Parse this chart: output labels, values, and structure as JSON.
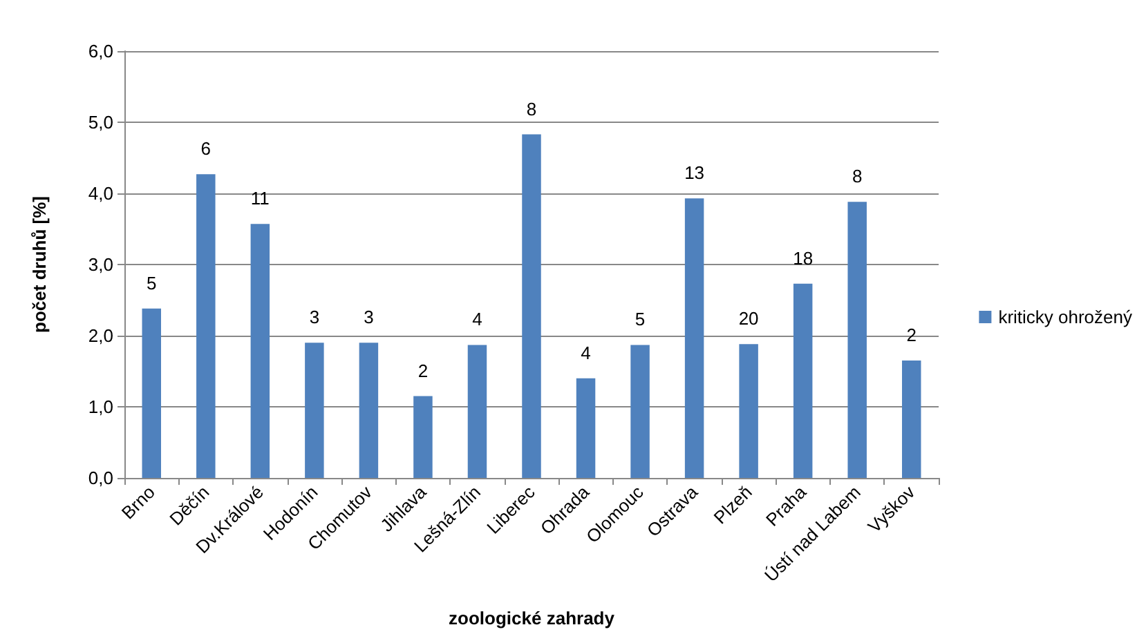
{
  "chart_data": {
    "type": "bar",
    "xlabel": "zoologické zahrady",
    "ylabel": "počet druhů [%]",
    "categories": [
      "Brno",
      "Děčín",
      "Dv.Králové",
      "Hodonín",
      "Chomutov",
      "Jihlava",
      "Lešná-Zlín",
      "Liberec",
      "Ohrada",
      "Olomouc",
      "Ostrava",
      "Plzeň",
      "Praha",
      "Ústí nad Labem",
      "Vyškov"
    ],
    "series": [
      {
        "name": "kriticky ohrožený",
        "color": "#4f81bd",
        "values": [
          2.38,
          4.27,
          3.57,
          1.9,
          1.9,
          1.15,
          1.87,
          4.83,
          1.4,
          1.87,
          3.93,
          1.88,
          2.73,
          3.88,
          1.65
        ]
      }
    ],
    "annotations": [
      {
        "text": "5",
        "x": "Brno",
        "y": 2.38
      },
      {
        "text": "6",
        "x": "Děčín",
        "y": 4.27
      },
      {
        "text": "11",
        "x": "Dv.Králové",
        "y": 3.57
      },
      {
        "text": "3",
        "x": "Hodonín",
        "y": 1.9
      },
      {
        "text": "3",
        "x": "Chomutov",
        "y": 1.9
      },
      {
        "text": "2",
        "x": "Jihlava",
        "y": 1.15
      },
      {
        "text": "4",
        "x": "Lešná-Zlín",
        "y": 1.87
      },
      {
        "text": "8",
        "x": "Liberec",
        "y": 4.83
      },
      {
        "text": "4",
        "x": "Ohrada",
        "y": 1.4
      },
      {
        "text": "5",
        "x": "Olomouc",
        "y": 1.87
      },
      {
        "text": "13",
        "x": "Ostrava",
        "y": 3.93
      },
      {
        "text": "20",
        "x": "Plzeň",
        "y": 1.88
      },
      {
        "text": "18",
        "x": "Praha",
        "y": 2.73
      },
      {
        "text": "8",
        "x": "Ústí nad Labem",
        "y": 3.88
      },
      {
        "text": "2",
        "x": "Vyškov",
        "y": 1.65
      }
    ],
    "ylim": [
      0,
      6
    ],
    "yticks": [
      {
        "value": 0,
        "label": "0,0"
      },
      {
        "value": 1,
        "label": "1,0"
      },
      {
        "value": 2,
        "label": "2,0"
      },
      {
        "value": 3,
        "label": "3,0"
      },
      {
        "value": 4,
        "label": "4,0"
      },
      {
        "value": 5,
        "label": "5,0"
      },
      {
        "value": 6,
        "label": "6,0"
      }
    ],
    "grid": "y",
    "legend": "right"
  }
}
